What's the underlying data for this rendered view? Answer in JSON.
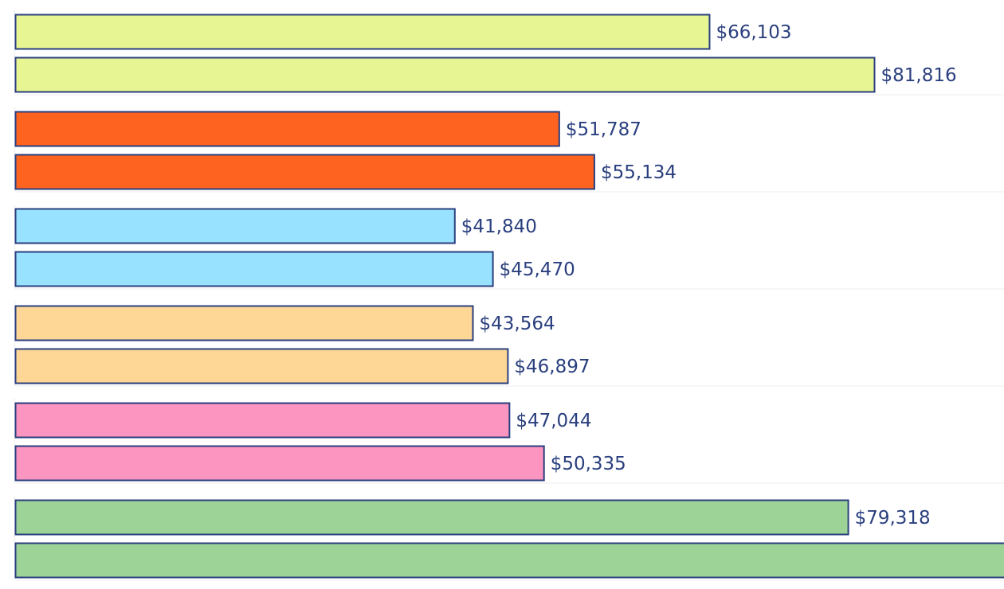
{
  "chart_data": {
    "type": "bar",
    "orientation": "horizontal",
    "title": "",
    "xlabel": "",
    "ylabel": "",
    "grid": false,
    "legend": "none",
    "value_prefix": "$",
    "bar_outline_color": "#2a3f7e",
    "label_color": "#2a3f7e",
    "groups": [
      {
        "color": "#e8f593",
        "values": [
          66103,
          81816
        ],
        "labels": [
          "$66,103",
          "$81,816"
        ]
      },
      {
        "color": "#ff6320",
        "values": [
          51787,
          55134
        ],
        "labels": [
          "$51,787",
          "$55,134"
        ]
      },
      {
        "color": "#99e2ff",
        "values": [
          41840,
          45470
        ],
        "labels": [
          "$41,840",
          "$45,470"
        ]
      },
      {
        "color": "#fed797",
        "values": [
          43564,
          46897
        ],
        "labels": [
          "$43,564",
          "$46,897"
        ]
      },
      {
        "color": "#fd95c1",
        "values": [
          47044,
          50335
        ],
        "labels": [
          "$47,044",
          "$50,335"
        ]
      },
      {
        "color": "#9dd396",
        "values": [
          79318,
          96000
        ],
        "labels": [
          "$79,318",
          ""
        ]
      }
    ],
    "notes": "Last bar extends past the visible area; its label is not visible."
  }
}
